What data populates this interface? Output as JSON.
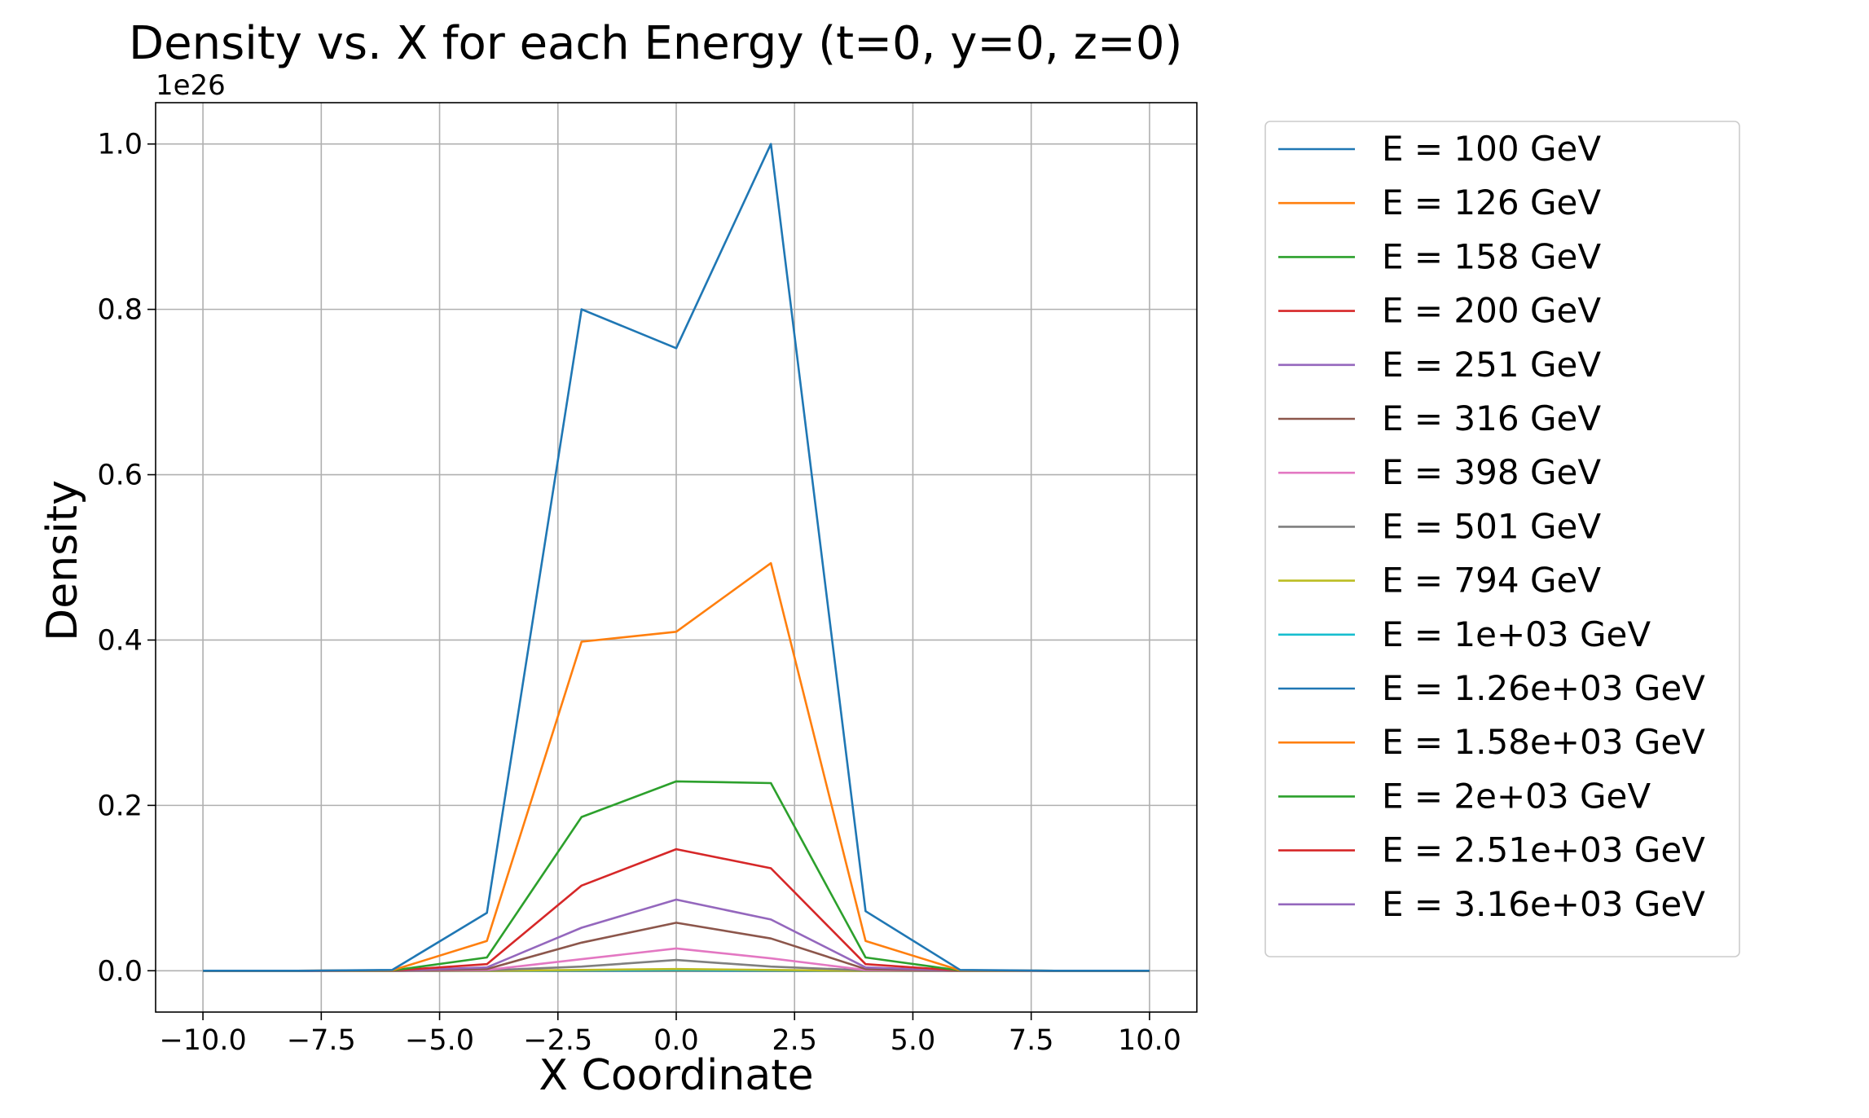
{
  "chart_data": {
    "type": "line",
    "title": "Density vs. X for each Energy (t=0, y=0, z=0)",
    "xlabel": "X Coordinate",
    "ylabel": "Density",
    "y_offset_label": "1e26",
    "y_scale": 1e+26,
    "xlim": [
      -11,
      11
    ],
    "ylim": [
      -0.05,
      1.05
    ],
    "grid": true,
    "legend_position": "outside-right",
    "x_ticks": [
      -10,
      -7.5,
      -5,
      -2.5,
      0,
      2.5,
      5,
      7.5,
      10
    ],
    "x_tick_labels": [
      "−10.0",
      "−7.5",
      "−5.0",
      "−2.5",
      "0.0",
      "2.5",
      "5.0",
      "7.5",
      "10.0"
    ],
    "y_ticks": [
      0,
      0.2,
      0.4,
      0.6,
      0.8,
      1.0
    ],
    "y_tick_labels": [
      "0.0",
      "0.2",
      "0.4",
      "0.6",
      "0.8",
      "1.0"
    ],
    "x": [
      -10,
      -8,
      -6,
      -4,
      -2,
      0,
      2,
      4,
      6,
      8,
      10
    ],
    "series": [
      {
        "name": "E = 100 GeV",
        "color": "#1f77b4",
        "values": [
          0,
          0,
          0.001,
          0.07,
          0.8,
          0.753,
          1.0,
          0.072,
          0.001,
          0,
          0
        ]
      },
      {
        "name": "E = 126 GeV",
        "color": "#ff7f0e",
        "values": [
          0,
          0,
          0.0005,
          0.036,
          0.398,
          0.41,
          0.493,
          0.036,
          0.0005,
          0,
          0
        ]
      },
      {
        "name": "E = 158 GeV",
        "color": "#2ca02c",
        "values": [
          0,
          0,
          0.0003,
          0.016,
          0.186,
          0.229,
          0.227,
          0.016,
          0.0003,
          0,
          0
        ]
      },
      {
        "name": "E = 200 GeV",
        "color": "#d62728",
        "values": [
          0,
          0,
          0.0002,
          0.008,
          0.103,
          0.147,
          0.124,
          0.008,
          0.0002,
          0,
          0
        ]
      },
      {
        "name": "E = 251 GeV",
        "color": "#9467bd",
        "values": [
          0,
          0,
          0.0001,
          0.004,
          0.052,
          0.086,
          0.062,
          0.004,
          0.0001,
          0,
          0
        ]
      },
      {
        "name": "E = 316 GeV",
        "color": "#8c564b",
        "values": [
          0,
          0,
          0,
          0.002,
          0.034,
          0.058,
          0.039,
          0.002,
          0,
          0,
          0
        ]
      },
      {
        "name": "E = 398 GeV",
        "color": "#e377c2",
        "values": [
          0,
          0,
          0,
          0.001,
          0.014,
          0.027,
          0.015,
          0.001,
          0,
          0,
          0
        ]
      },
      {
        "name": "E = 501 GeV",
        "color": "#7f7f7f",
        "values": [
          0,
          0,
          0,
          0.0005,
          0.005,
          0.013,
          0.005,
          0.0005,
          0,
          0,
          0
        ]
      },
      {
        "name": "E = 794 GeV",
        "color": "#bcbd22",
        "values": [
          0,
          0,
          0,
          0,
          0.001,
          0.002,
          0.001,
          0,
          0,
          0,
          0
        ]
      },
      {
        "name": "E = 1e+03 GeV",
        "color": "#17becf",
        "values": [
          0,
          0,
          0,
          0,
          0.0005,
          0.001,
          0.0005,
          0,
          0,
          0,
          0
        ]
      },
      {
        "name": "E = 1.26e+03 GeV",
        "color": "#1f77b4",
        "values": [
          0,
          0,
          0,
          0,
          0,
          0.0003,
          0,
          0,
          0,
          0,
          0
        ]
      },
      {
        "name": "E = 1.58e+03 GeV",
        "color": "#ff7f0e",
        "values": [
          0,
          0,
          0,
          0,
          0,
          0.0001,
          0,
          0,
          0,
          0,
          0
        ]
      },
      {
        "name": "E = 2e+03 GeV",
        "color": "#2ca02c",
        "values": [
          0,
          0,
          0,
          0,
          0,
          0,
          0,
          0,
          0,
          0,
          0
        ]
      },
      {
        "name": "E = 2.51e+03 GeV",
        "color": "#d62728",
        "values": [
          0,
          0,
          0,
          0,
          0,
          0,
          0,
          0,
          0,
          0,
          0
        ]
      },
      {
        "name": "E = 3.16e+03 GeV",
        "color": "#9467bd",
        "values": [
          0,
          0,
          0,
          0,
          0,
          0,
          0,
          0,
          0,
          0,
          0
        ]
      }
    ]
  }
}
